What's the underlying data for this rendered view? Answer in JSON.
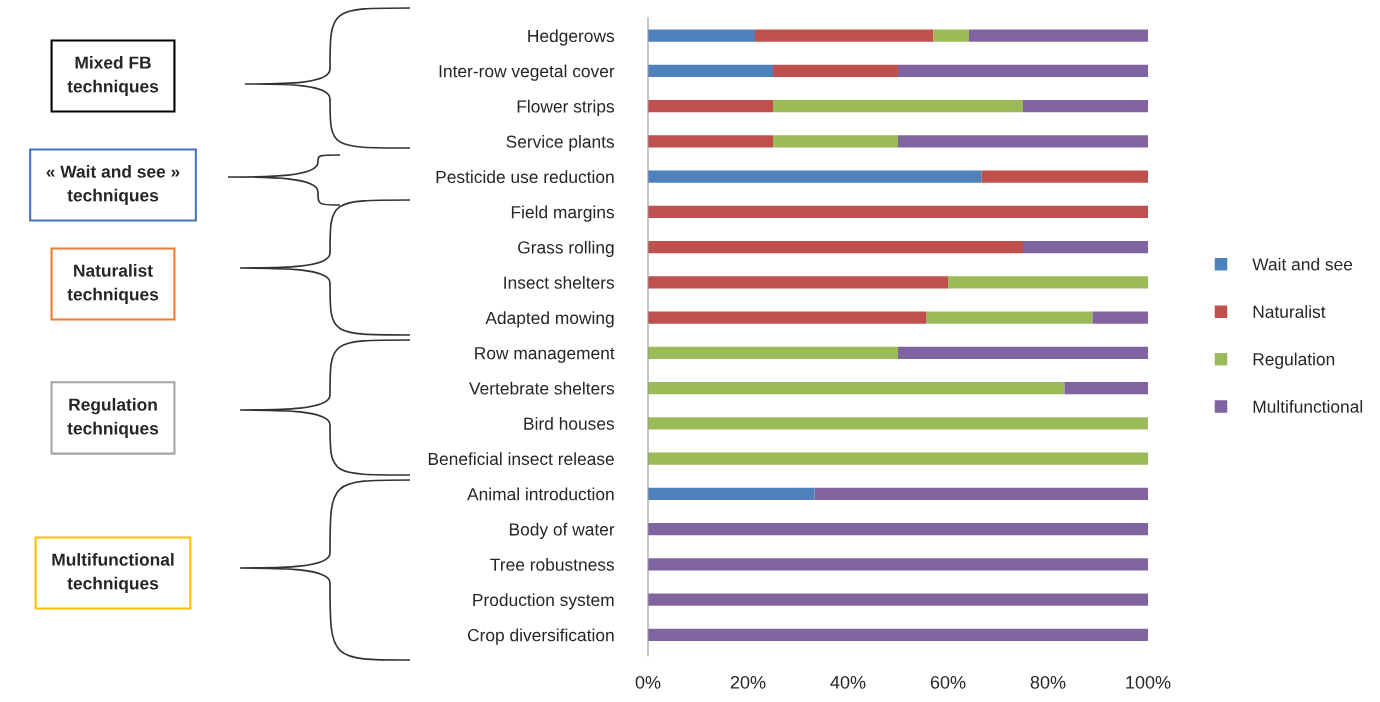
{
  "chart_data": {
    "type": "bar",
    "orientation": "horizontal",
    "stacked": true,
    "categories": [
      "Hedgerows",
      "Inter-row vegetal cover",
      "Flower strips",
      "Service plants",
      "Pesticide use reduction",
      "Field margins",
      "Grass rolling",
      "Insect shelters",
      "Adapted mowing",
      "Row management",
      "Vertebrate shelters",
      "Bird houses",
      "Beneficial insect release",
      "Animal introduction",
      "Body of water",
      "Tree robustness",
      "Production system",
      "Crop diversification"
    ],
    "series": [
      {
        "name": "Wait and see",
        "color": "#4f81bd",
        "values": [
          21.4,
          25,
          0,
          0,
          66.7,
          0,
          0,
          0,
          0,
          0,
          0,
          0,
          0,
          33.3,
          0,
          0,
          0,
          0
        ]
      },
      {
        "name": "Naturalist",
        "color": "#c0504d",
        "values": [
          35.7,
          25,
          25,
          25,
          33.3,
          100,
          75,
          60,
          55.6,
          0,
          0,
          0,
          0,
          0,
          0,
          0,
          0,
          0
        ]
      },
      {
        "name": "Regulation",
        "color": "#9bbb59",
        "values": [
          7.1,
          0,
          50,
          25,
          0,
          0,
          0,
          40,
          33.3,
          50,
          83.3,
          100,
          100,
          0,
          0,
          0,
          0,
          0
        ]
      },
      {
        "name": "Multifunctional",
        "color": "#8064a2",
        "values": [
          35.8,
          50,
          25,
          50,
          0,
          0,
          25,
          0,
          11.1,
          50,
          16.7,
          0,
          0,
          66.7,
          100,
          100,
          100,
          100
        ]
      }
    ],
    "xlim": [
      0,
      100
    ],
    "xticks": [
      {
        "value": 0,
        "label": "0%"
      },
      {
        "value": 20,
        "label": "20%"
      },
      {
        "value": 40,
        "label": "40%"
      },
      {
        "value": 60,
        "label": "60%"
      },
      {
        "value": 80,
        "label": "80%"
      },
      {
        "value": 100,
        "label": "100%"
      }
    ],
    "grid": false,
    "legend": "right",
    "annotations": [
      "Mixed FB\ntechniques",
      "« Wait and see »\ntechniques",
      "Naturalist\ntechniques",
      "Regulation\ntechniques",
      "Multifunctional\ntechniques"
    ]
  }
}
